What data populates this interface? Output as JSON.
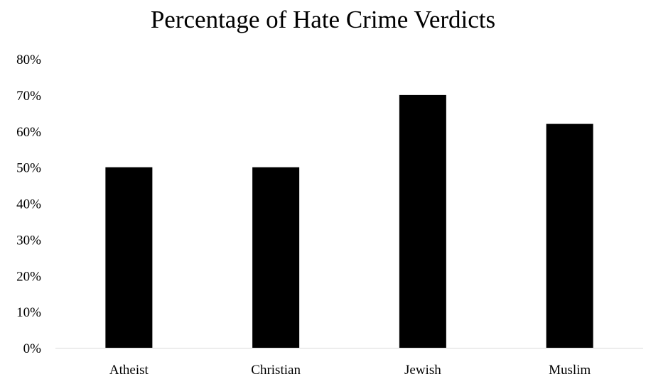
{
  "chart_data": {
    "type": "bar",
    "title": "Percentage of Hate Crime Verdicts",
    "xlabel": "",
    "ylabel": "",
    "categories": [
      "Atheist",
      "Christian",
      "Jewish",
      "Muslim"
    ],
    "values": [
      0.5,
      0.5,
      0.7,
      0.62
    ],
    "ylim": [
      0,
      0.8
    ],
    "yticks": [
      "0%",
      "10%",
      "20%",
      "30%",
      "40%",
      "50%",
      "60%",
      "70%",
      "80%"
    ],
    "grid": false,
    "legend": "none",
    "bar_color": "#000000",
    "axis_color": "#d9d9d9"
  }
}
